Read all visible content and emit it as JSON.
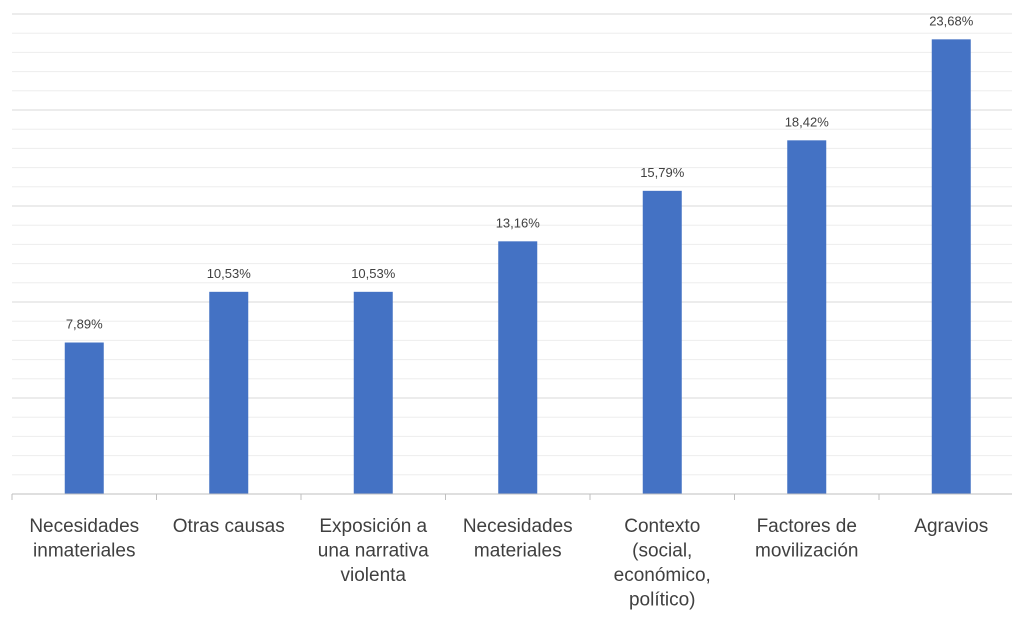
{
  "chart_data": {
    "type": "bar",
    "categories": [
      [
        "Necesidades",
        "inmateriales"
      ],
      [
        "Otras causas"
      ],
      [
        "Exposición a",
        "una narrativa",
        "violenta"
      ],
      [
        "Necesidades",
        "materiales"
      ],
      [
        "Contexto",
        "(social,",
        "económico,",
        "político)"
      ],
      [
        "Factores de",
        "movilización"
      ],
      [
        "Agravios"
      ]
    ],
    "values": [
      7.89,
      10.53,
      10.53,
      13.16,
      15.79,
      18.42,
      23.68
    ],
    "data_labels": [
      "7,89%",
      "10,53%",
      "10,53%",
      "13,16%",
      "15,79%",
      "18,42%",
      "23,68%"
    ],
    "ylim": [
      0,
      25
    ],
    "grid": true,
    "bar_color": "#4472C4",
    "grid_color": "#D9D9D9"
  }
}
